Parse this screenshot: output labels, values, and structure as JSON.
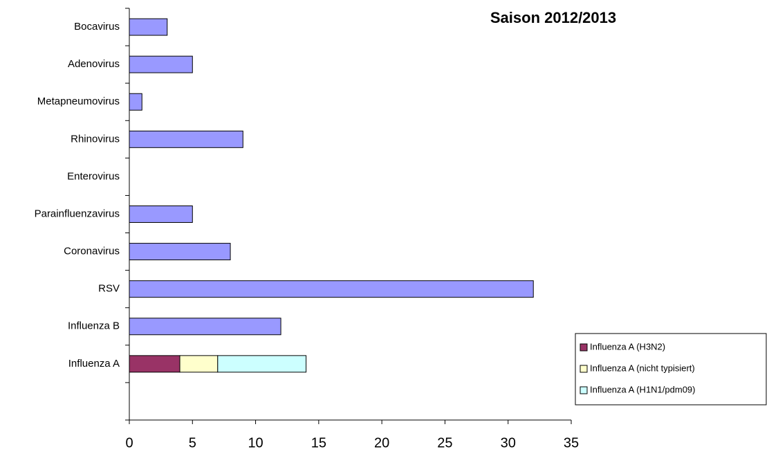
{
  "chart_data": {
    "type": "stacked-barh",
    "title": "Saison 2012/2013",
    "categories": [
      "Bocavirus",
      "Adenovirus",
      "Metapneumovirus",
      "Rhinovirus",
      "Enterovirus",
      "Parainfluenzavirus",
      "Coronavirus",
      "RSV",
      "Influenza B",
      "Influenza A",
      null
    ],
    "series": [
      {
        "color": "#9999ff",
        "values": [
          3,
          5,
          1,
          9,
          0,
          5,
          8,
          32,
          12,
          null,
          null
        ]
      },
      {
        "name": "Influenza A (H3N2)",
        "color": "#993366",
        "values": [
          null,
          null,
          null,
          null,
          null,
          null,
          null,
          null,
          null,
          4,
          null
        ]
      },
      {
        "name": "Influenza A (nicht typisiert)",
        "color": "#ffffcc",
        "values": [
          null,
          null,
          null,
          null,
          null,
          null,
          null,
          null,
          null,
          3,
          null
        ]
      },
      {
        "name": "Influenza A (H1N1/pdm09)",
        "color": "#ccffff",
        "values": [
          null,
          null,
          null,
          null,
          null,
          null,
          null,
          null,
          null,
          7,
          null
        ]
      }
    ],
    "xlim": [
      0,
      35
    ],
    "xticks": [
      0,
      5,
      10,
      15,
      20,
      25,
      30,
      35
    ],
    "legend": "lower right"
  }
}
